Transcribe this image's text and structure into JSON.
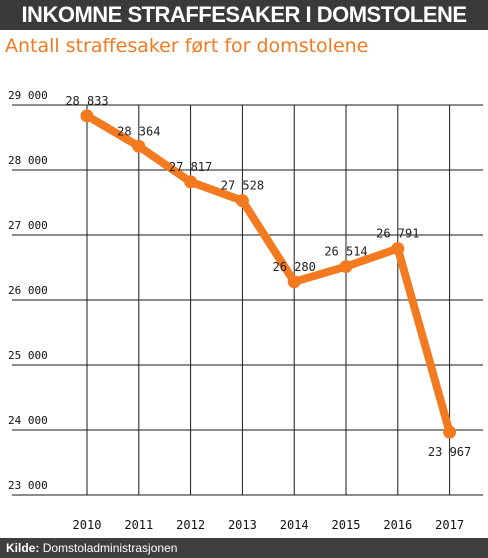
{
  "header": {
    "title": "INKOMNE STRAFFESAKER I DOMSTOLENE",
    "subtitle": "Antall straffesaker ført for domstolene"
  },
  "footer": {
    "source_label": "Kilde:",
    "source_value": "Domstoladministrasjonen"
  },
  "colors": {
    "series": "#f47a20",
    "title_bg": "#3a3a3a",
    "grid": "#1a1a1a"
  },
  "chart_data": {
    "type": "line",
    "title": "INKOMNE STRAFFESAKER I DOMSTOLENE",
    "subtitle": "Antall straffesaker ført for domstolene",
    "xlabel": "",
    "ylabel": "",
    "x": [
      "2010",
      "2011",
      "2012",
      "2013",
      "2014",
      "2015",
      "2016",
      "2017"
    ],
    "series": [
      {
        "values": [
          28833,
          28364,
          27817,
          27528,
          26280,
          26514,
          26791,
          23967
        ],
        "labels": [
          "28 833",
          "28 364",
          "27 817",
          "27 528",
          "26 280",
          "26 514",
          "26 791",
          "23 967"
        ]
      }
    ],
    "ylim": [
      23000,
      29000
    ],
    "yticks": [
      23000,
      24000,
      25000,
      26000,
      27000,
      28000,
      29000
    ],
    "ytick_labels": [
      "23 000",
      "24 000",
      "25 000",
      "26 000",
      "27 000",
      "28 000",
      "29 000"
    ],
    "grid": true,
    "legend": "none"
  }
}
